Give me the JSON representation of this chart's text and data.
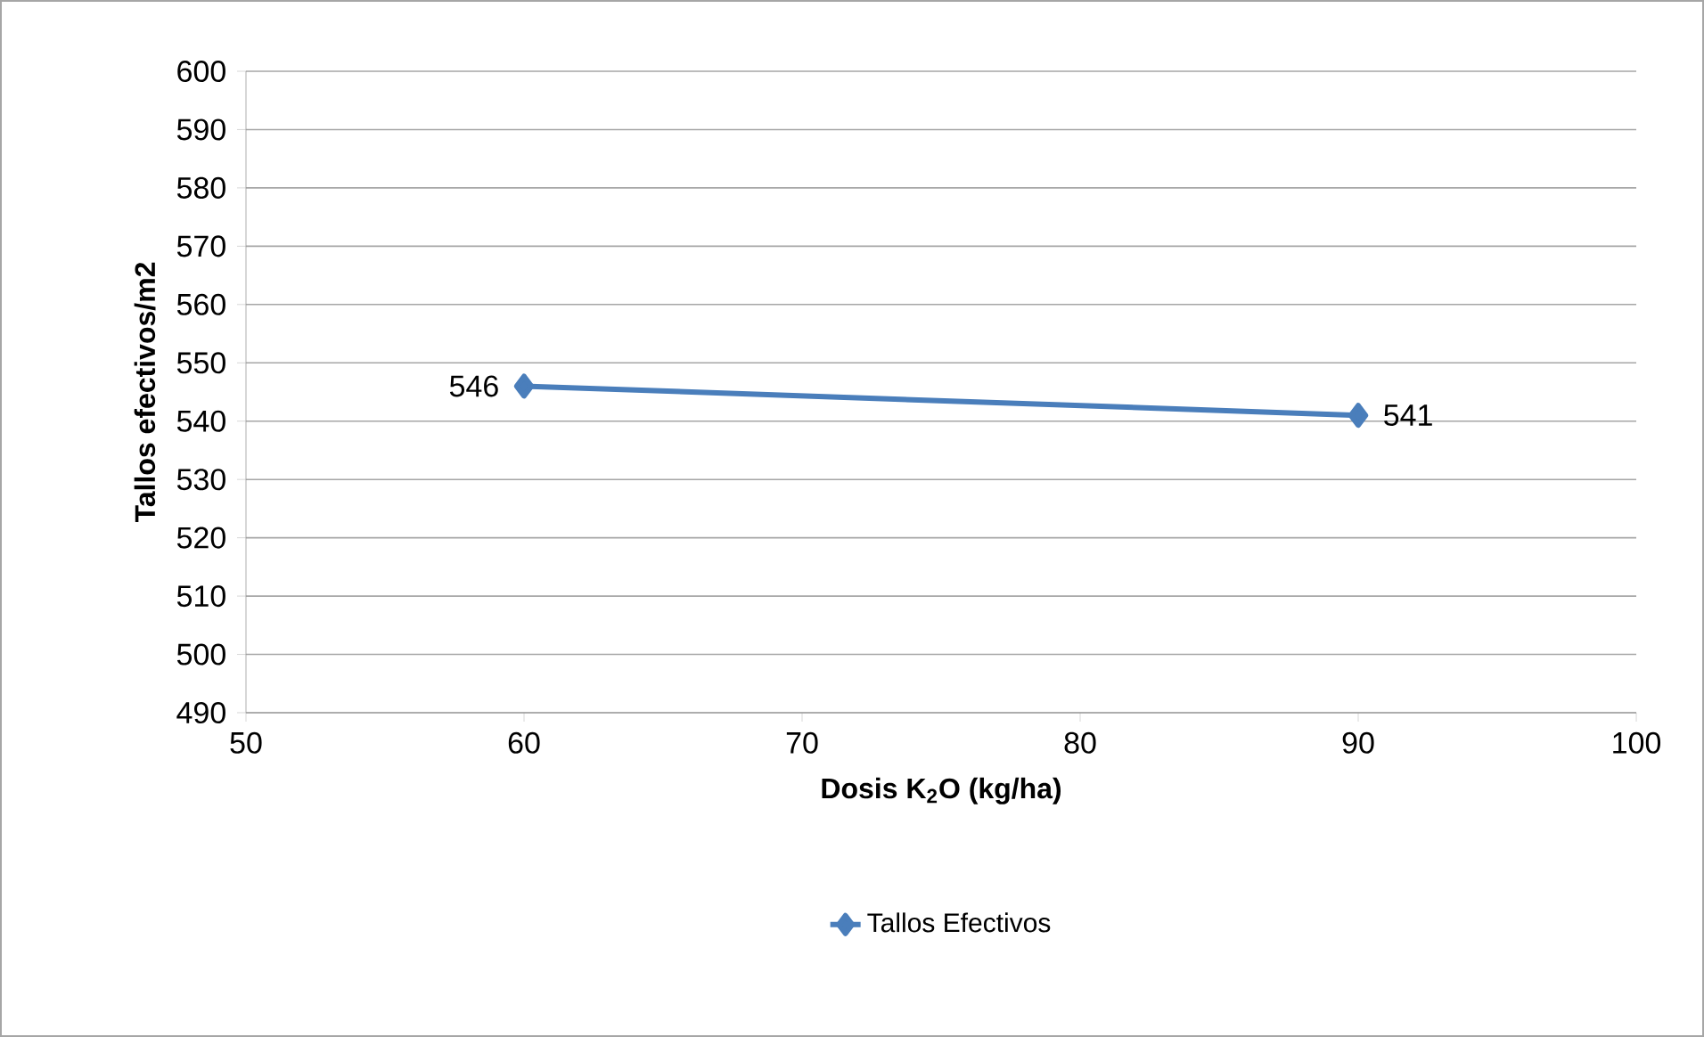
{
  "chart_data": {
    "type": "line",
    "xlabel": "Dosis K$_{2}$O (kg/ha)",
    "ylabel": "Tallos efectivos/m2",
    "x": [
      60,
      90
    ],
    "series": [
      {
        "name": "Tallos Efectivos",
        "color": "#4a7ebb",
        "values": [
          546,
          541
        ]
      }
    ],
    "xlim": [
      50,
      100
    ],
    "xticks": [
      50,
      60,
      70,
      80,
      90,
      100
    ],
    "ylim": [
      490,
      600
    ],
    "yticks": [
      490,
      500,
      510,
      520,
      530,
      540,
      550,
      560,
      570,
      580,
      590,
      600
    ],
    "grid": "y",
    "legend": "bottom",
    "marker": "diamond",
    "line_style": "solid",
    "data_labels": true
  }
}
